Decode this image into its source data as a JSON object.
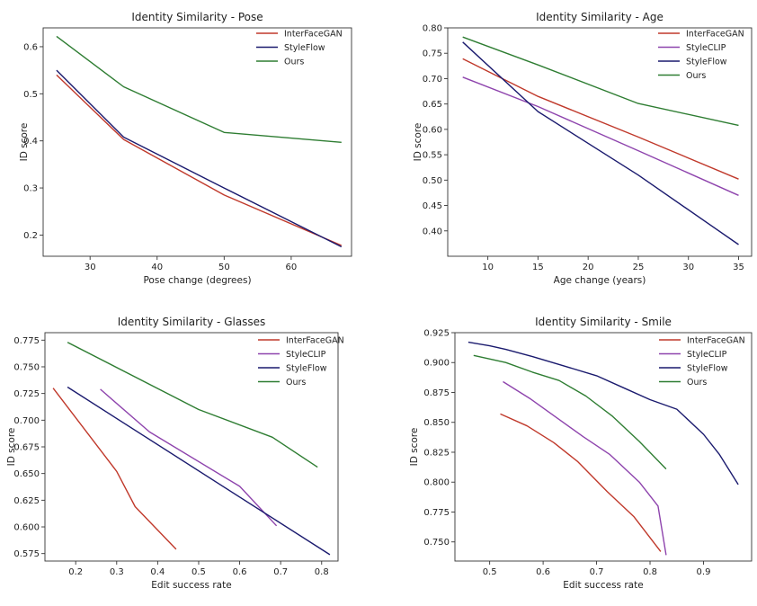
{
  "chart_data": [
    {
      "type": "line",
      "title": "Identity Similarity - Pose",
      "xlabel": "Pose change (degrees)",
      "ylabel": "ID score",
      "xlim": [
        23,
        69
      ],
      "ylim": [
        0.155,
        0.64
      ],
      "xticks": [
        30,
        40,
        50,
        60
      ],
      "yticks": [
        0.2,
        0.3,
        0.4,
        0.5,
        0.6
      ],
      "tick_labels_x": [
        "30",
        "40",
        "50",
        "60"
      ],
      "tick_labels_y": [
        "0.2",
        "0.3",
        "0.4",
        "0.5",
        "0.6"
      ],
      "grid": false,
      "legend_position": "upper-right",
      "series": [
        {
          "name": "InterFaceGAN",
          "color": "#c0392b",
          "x": [
            25,
            35,
            50,
            67.5
          ],
          "y": [
            0.54,
            0.403,
            0.285,
            0.178
          ]
        },
        {
          "name": "StyleFlow",
          "color": "#1a1a6e",
          "x": [
            25,
            35,
            50,
            67.5
          ],
          "y": [
            0.55,
            0.408,
            0.3,
            0.175
          ]
        },
        {
          "name": "Ours",
          "color": "#2e7d32",
          "x": [
            25,
            35,
            50,
            67.5
          ],
          "y": [
            0.622,
            0.515,
            0.418,
            0.397
          ]
        }
      ]
    },
    {
      "type": "line",
      "title": "Identity Similarity - Age",
      "xlabel": "Age change (years)",
      "ylabel": "ID score",
      "xlim": [
        6,
        36.3
      ],
      "ylim": [
        0.35,
        0.8
      ],
      "xticks": [
        10,
        15,
        20,
        25,
        30,
        35
      ],
      "yticks": [
        0.4,
        0.45,
        0.5,
        0.55,
        0.6,
        0.65,
        0.7,
        0.75,
        0.8
      ],
      "tick_labels_x": [
        "10",
        "15",
        "20",
        "25",
        "30",
        "35"
      ],
      "tick_labels_y": [
        "0.40",
        "0.45",
        "0.50",
        "0.55",
        "0.60",
        "0.65",
        "0.70",
        "0.75",
        "0.80"
      ],
      "grid": false,
      "legend_position": "upper-right",
      "series": [
        {
          "name": "InterFaceGAN",
          "color": "#c0392b",
          "x": [
            7.5,
            15,
            25,
            35
          ],
          "y": [
            0.739,
            0.665,
            0.585,
            0.502
          ]
        },
        {
          "name": "StyleCLIP",
          "color": "#8e44ad",
          "x": [
            7.5,
            15,
            25,
            35
          ],
          "y": [
            0.703,
            0.645,
            0.558,
            0.47
          ]
        },
        {
          "name": "StyleFlow",
          "color": "#1a1a6e",
          "x": [
            7.5,
            15,
            25,
            35
          ],
          "y": [
            0.772,
            0.635,
            0.51,
            0.373
          ]
        },
        {
          "name": "Ours",
          "color": "#2e7d32",
          "x": [
            7.5,
            15,
            25,
            35
          ],
          "y": [
            0.782,
            0.727,
            0.651,
            0.608
          ]
        }
      ]
    },
    {
      "type": "line",
      "title": "Identity Similarity - Glasses",
      "xlabel": "Edit success rate",
      "ylabel": "ID score",
      "xlim": [
        0.125,
        0.84
      ],
      "ylim": [
        0.568,
        0.782
      ],
      "xticks": [
        0.2,
        0.3,
        0.4,
        0.5,
        0.6,
        0.7,
        0.8
      ],
      "yticks": [
        0.575,
        0.6,
        0.625,
        0.65,
        0.675,
        0.7,
        0.725,
        0.75,
        0.775
      ],
      "tick_labels_x": [
        "0.2",
        "0.3",
        "0.4",
        "0.5",
        "0.6",
        "0.7",
        "0.8"
      ],
      "tick_labels_y": [
        "0.575",
        "0.600",
        "0.625",
        "0.650",
        "0.675",
        "0.700",
        "0.725",
        "0.750",
        "0.775"
      ],
      "grid": false,
      "legend_position": "upper-right",
      "series": [
        {
          "name": "InterFaceGAN",
          "color": "#c0392b",
          "x": [
            0.145,
            0.3,
            0.345,
            0.445
          ],
          "y": [
            0.73,
            0.652,
            0.619,
            0.579
          ]
        },
        {
          "name": "StyleCLIP",
          "color": "#8e44ad",
          "x": [
            0.26,
            0.38,
            0.6,
            0.69
          ],
          "y": [
            0.729,
            0.689,
            0.638,
            0.601
          ]
        },
        {
          "name": "StyleFlow",
          "color": "#1a1a6e",
          "x": [
            0.18,
            0.82
          ],
          "y": [
            0.731,
            0.574
          ]
        },
        {
          "name": "Ours",
          "color": "#2e7d32",
          "x": [
            0.18,
            0.5,
            0.68,
            0.79
          ],
          "y": [
            0.773,
            0.71,
            0.684,
            0.656
          ]
        }
      ]
    },
    {
      "type": "line",
      "title": "Identity Similarity - Smile",
      "xlabel": "Edit success rate",
      "ylabel": "ID score",
      "xlim": [
        0.435,
        0.99
      ],
      "ylim": [
        0.734,
        0.925
      ],
      "xticks": [
        0.5,
        0.6,
        0.7,
        0.8,
        0.9
      ],
      "yticks": [
        0.75,
        0.775,
        0.8,
        0.825,
        0.85,
        0.875,
        0.9,
        0.925
      ],
      "tick_labels_x": [
        "0.5",
        "0.6",
        "0.7",
        "0.8",
        "0.9"
      ],
      "tick_labels_y": [
        "0.750",
        "0.775",
        "0.800",
        "0.825",
        "0.850",
        "0.875",
        "0.900",
        "0.925"
      ],
      "grid": false,
      "legend_position": "upper-right",
      "series": [
        {
          "name": "InterFaceGAN",
          "color": "#c0392b",
          "x": [
            0.52,
            0.57,
            0.62,
            0.665,
            0.72,
            0.77,
            0.82
          ],
          "y": [
            0.857,
            0.847,
            0.833,
            0.817,
            0.792,
            0.771,
            0.742
          ]
        },
        {
          "name": "StyleCLIP",
          "color": "#8e44ad",
          "x": [
            0.525,
            0.575,
            0.625,
            0.675,
            0.725,
            0.78,
            0.815,
            0.83
          ],
          "y": [
            0.884,
            0.87,
            0.854,
            0.838,
            0.823,
            0.8,
            0.78,
            0.739
          ]
        },
        {
          "name": "StyleFlow",
          "color": "#1a1a6e",
          "x": [
            0.46,
            0.5,
            0.53,
            0.58,
            0.64,
            0.7,
            0.75,
            0.8,
            0.85,
            0.9,
            0.93,
            0.965
          ],
          "y": [
            0.917,
            0.914,
            0.911,
            0.905,
            0.897,
            0.889,
            0.879,
            0.869,
            0.861,
            0.84,
            0.823,
            0.798
          ]
        },
        {
          "name": "Ours",
          "color": "#2e7d32",
          "x": [
            0.47,
            0.53,
            0.58,
            0.63,
            0.68,
            0.73,
            0.78,
            0.83
          ],
          "y": [
            0.906,
            0.9,
            0.892,
            0.885,
            0.872,
            0.855,
            0.834,
            0.811
          ]
        }
      ]
    }
  ]
}
